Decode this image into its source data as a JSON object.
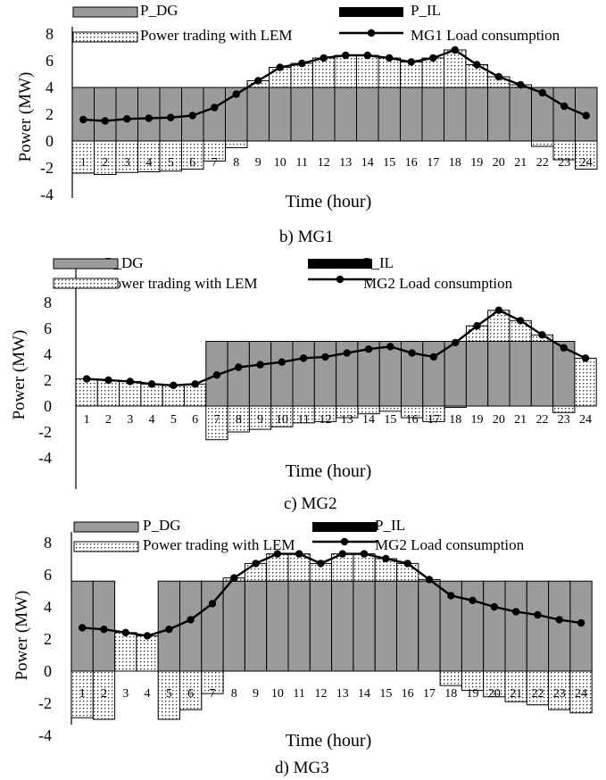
{
  "chart_data": [
    {
      "type": "bar",
      "caption": "b) MG1",
      "xlabel": "Time (hour)",
      "ylabel": "Power (MW)",
      "ylim": [
        -4,
        8
      ],
      "yticks": [
        -4,
        -2,
        0,
        2,
        4,
        6,
        8
      ],
      "categories": [
        "1",
        "2",
        "3",
        "4",
        "5",
        "6",
        "7",
        "8",
        "9",
        "10",
        "11",
        "12",
        "13",
        "14",
        "15",
        "16",
        "17",
        "18",
        "19",
        "20",
        "21",
        "22",
        "23",
        "24"
      ],
      "legend": [
        "P_DG",
        "P_IL",
        "Power trading with LEM",
        "MG1 Load consumption"
      ],
      "series": [
        {
          "name": "P_DG",
          "kind": "bar",
          "values": [
            4,
            4,
            4,
            4,
            4,
            4,
            4,
            4,
            4,
            4,
            4,
            4,
            4,
            4,
            4,
            4,
            4,
            4,
            4,
            4,
            4,
            4,
            4,
            4
          ]
        },
        {
          "name": "P_IL",
          "kind": "bar",
          "values": [
            0,
            0,
            0,
            0,
            0,
            0,
            0,
            0,
            0,
            0,
            0,
            0,
            0,
            0,
            0,
            0,
            0,
            0,
            0,
            0,
            0,
            0,
            0,
            0
          ]
        },
        {
          "name": "Power trading with LEM",
          "kind": "bar",
          "values": [
            -2.4,
            -2.5,
            -2.35,
            -2.3,
            -2.25,
            -2.1,
            -1.5,
            -0.5,
            0.5,
            1.5,
            1.8,
            2.2,
            2.4,
            2.4,
            2.2,
            1.9,
            2.2,
            2.8,
            1.7,
            0.8,
            0.2,
            -0.4,
            -1.4,
            -2.1
          ]
        },
        {
          "name": "MG1 Load consumption",
          "kind": "line",
          "values": [
            1.6,
            1.5,
            1.65,
            1.7,
            1.75,
            1.9,
            2.5,
            3.5,
            4.5,
            5.5,
            5.8,
            6.2,
            6.4,
            6.4,
            6.2,
            5.9,
            6.2,
            6.8,
            5.7,
            4.8,
            4.2,
            3.6,
            2.6,
            1.9
          ]
        }
      ]
    },
    {
      "type": "bar",
      "caption": "c) MG2",
      "xlabel": "Time (hour)",
      "ylabel": "Power (MW)",
      "ylim": [
        -4,
        8
      ],
      "yticks": [
        -4,
        -2,
        0,
        2,
        4,
        6,
        8
      ],
      "categories": [
        "1",
        "2",
        "3",
        "4",
        "5",
        "6",
        "7",
        "8",
        "9",
        "10",
        "11",
        "12",
        "13",
        "14",
        "15",
        "16",
        "17",
        "18",
        "19",
        "20",
        "21",
        "22",
        "23",
        "24"
      ],
      "legend": [
        "P_DG",
        "P_IL",
        "Power trading with LEM",
        "MG2 Load consumption"
      ],
      "series": [
        {
          "name": "P_DG",
          "kind": "bar",
          "values": [
            0,
            0,
            0,
            0,
            0,
            0,
            5,
            5,
            5,
            5,
            5,
            5,
            5,
            5,
            5,
            5,
            5,
            5,
            5,
            5,
            5,
            5,
            5,
            0
          ]
        },
        {
          "name": "P_IL",
          "kind": "bar",
          "values": [
            0,
            0,
            0,
            0,
            0,
            0,
            0,
            0,
            0,
            0,
            0,
            0,
            0,
            0,
            0,
            0,
            0,
            0,
            0,
            0,
            0,
            0,
            0,
            0
          ]
        },
        {
          "name": "Power trading with LEM",
          "kind": "bar",
          "values": [
            2.1,
            2.0,
            1.9,
            1.7,
            1.6,
            1.7,
            -2.6,
            -2.0,
            -1.8,
            -1.6,
            -1.3,
            -1.2,
            -0.9,
            -0.6,
            -0.4,
            -0.9,
            -1.2,
            -0.1,
            1.2,
            2.4,
            1.6,
            0.5,
            -0.5,
            3.7
          ]
        },
        {
          "name": "MG2 Load consumption",
          "kind": "line",
          "values": [
            2.1,
            2.0,
            1.9,
            1.7,
            1.6,
            1.7,
            2.4,
            3.0,
            3.2,
            3.4,
            3.7,
            3.8,
            4.1,
            4.4,
            4.6,
            4.1,
            3.8,
            4.9,
            6.2,
            7.4,
            6.6,
            5.5,
            4.5,
            3.7
          ]
        }
      ]
    },
    {
      "type": "bar",
      "caption": "d) MG3",
      "xlabel": "Time (hour)",
      "ylabel": "Power (MW)",
      "ylim": [
        -4,
        8
      ],
      "yticks": [
        -4,
        -2,
        0,
        2,
        4,
        6,
        8
      ],
      "categories": [
        "1",
        "2",
        "3",
        "4",
        "5",
        "6",
        "7",
        "8",
        "9",
        "10",
        "11",
        "12",
        "13",
        "14",
        "15",
        "16",
        "17",
        "18",
        "19",
        "20",
        "21",
        "22",
        "23",
        "24"
      ],
      "legend": [
        "P_DG",
        "P_IL",
        "Power trading with LEM",
        "MG2 Load consumption"
      ],
      "series": [
        {
          "name": "P_DG",
          "kind": "bar",
          "values": [
            5.6,
            5.6,
            0,
            0,
            5.6,
            5.6,
            5.6,
            5.6,
            5.6,
            5.6,
            5.6,
            5.6,
            5.6,
            5.6,
            5.6,
            5.6,
            5.6,
            5.6,
            5.6,
            5.6,
            5.6,
            5.6,
            5.6,
            5.6
          ]
        },
        {
          "name": "P_IL",
          "kind": "bar",
          "values": [
            0,
            0,
            0,
            0,
            0,
            0,
            0,
            0,
            0,
            0,
            0,
            0,
            0,
            0,
            0,
            0,
            0,
            0,
            0,
            0,
            0,
            0,
            0,
            0
          ]
        },
        {
          "name": "Power trading with LEM",
          "kind": "bar",
          "values": [
            -2.9,
            -3.0,
            2.4,
            2.2,
            -3.0,
            -2.4,
            -1.4,
            0.2,
            1.1,
            1.7,
            1.7,
            1.1,
            1.7,
            1.7,
            1.4,
            1.1,
            0.1,
            -0.9,
            -1.2,
            -1.6,
            -1.9,
            -2.1,
            -2.4,
            -2.6
          ]
        },
        {
          "name": "MG2 Load consumption",
          "kind": "line",
          "values": [
            2.7,
            2.6,
            2.4,
            2.2,
            2.6,
            3.2,
            4.2,
            5.8,
            6.7,
            7.3,
            7.3,
            6.7,
            7.3,
            7.3,
            7.0,
            6.7,
            5.7,
            4.7,
            4.4,
            4.0,
            3.7,
            3.5,
            3.2,
            3.0
          ]
        }
      ]
    }
  ]
}
